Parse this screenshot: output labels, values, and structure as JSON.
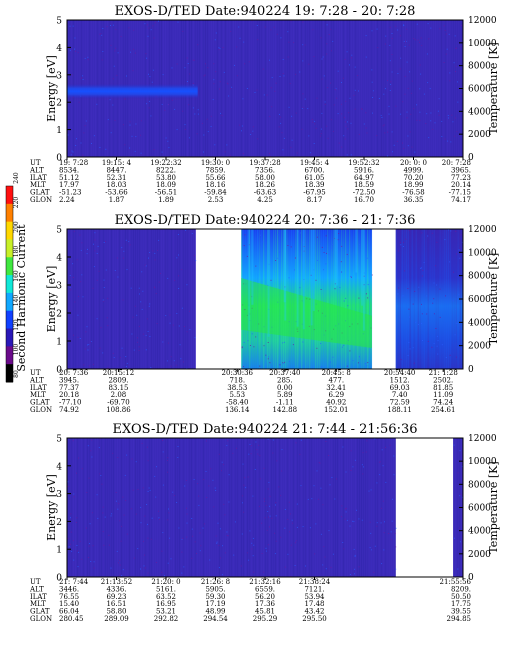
{
  "chart_data": [
    {
      "type": "heatmap",
      "title": "EXOS-D/TED   Date:940224  19: 7:28 - 20: 7:28",
      "ylabel": "Energy [eV]",
      "y2label": "Temperature [K]",
      "ylim": [
        0,
        5
      ],
      "y2lim": [
        0,
        12000
      ],
      "yticks": [
        "0",
        "1",
        "2",
        "3",
        "4",
        "5"
      ],
      "y2ticks": [
        "0",
        "2000",
        "4000",
        "6000",
        "8000",
        "10000",
        "12000"
      ],
      "data_segments": [
        [
          0,
          1
        ]
      ],
      "band": {
        "center": 2.4,
        "width": 0.55,
        "x_end": 0.33
      },
      "ephemeris": {
        "labels": [
          "UT",
          "ALT",
          "ILAT",
          "MLT",
          "GLAT",
          "GLON"
        ],
        "columns": [
          {
            "x": 0.0,
            "values": [
              "19: 7:28",
              "8534.",
              "51.12",
              "17.97",
              "-51.23",
              "2.24"
            ]
          },
          {
            "x": 0.125,
            "values": [
              "19:15: 4",
              "8447.",
              "52.31",
              "18.03",
              "-53.66",
              "1.87"
            ]
          },
          {
            "x": 0.25,
            "values": [
              "19:22:32",
              "8222.",
              "53.80",
              "18.09",
              "-56.51",
              "1.89"
            ]
          },
          {
            "x": 0.375,
            "values": [
              "19:30: 0",
              "7859.",
              "55.66",
              "18.16",
              "-59.84",
              "2.53"
            ]
          },
          {
            "x": 0.5,
            "values": [
              "19:37:28",
              "7356.",
              "58.00",
              "18.26",
              "-63.63",
              "4.25"
            ]
          },
          {
            "x": 0.625,
            "values": [
              "19:45: 4",
              "6700.",
              "61.05",
              "18.39",
              "-67.95",
              "8.17"
            ]
          },
          {
            "x": 0.75,
            "values": [
              "19:52:32",
              "5916.",
              "64.97",
              "18.59",
              "-72.50",
              "16.70"
            ]
          },
          {
            "x": 0.875,
            "values": [
              "20: 0: 0",
              "4999.",
              "70.20",
              "18.99",
              "-76.58",
              "36.35"
            ]
          },
          {
            "x": 1.0,
            "values": [
              "20: 7:28",
              "3965.",
              "77.23",
              "20.14",
              "-77.15",
              "74.17"
            ]
          }
        ]
      }
    },
    {
      "type": "heatmap",
      "title": "EXOS-D/TED   Date:940224  20: 7:36 - 21: 7:36",
      "ylabel": "Energy [eV]",
      "y2label": "Temperature [K]",
      "ylim": [
        0,
        5
      ],
      "y2lim": [
        0,
        12000
      ],
      "yticks": [
        "0",
        "1",
        "2",
        "3",
        "4",
        "5"
      ],
      "y2ticks": [
        "0",
        "2000",
        "4000",
        "6000",
        "8000",
        "10000",
        "12000"
      ],
      "data_segments": [
        [
          0,
          0.325
        ],
        [
          0.44,
          0.77
        ],
        [
          0.83,
          1
        ]
      ],
      "ephemeris": {
        "labels": [
          "UT",
          "ALT",
          "ILAT",
          "MLT",
          "GLAT",
          "GLON"
        ],
        "columns": [
          {
            "x": 0.0,
            "values": [
              "20: 7:36",
              "3945.",
              "77.37",
              "20.18",
              "-77.10",
              "74.92"
            ]
          },
          {
            "x": 0.13,
            "values": [
              "20:15:12",
              "2809.",
              "83.15",
              "2.08",
              "-69.70",
              "108.86"
            ]
          },
          {
            "x": 0.43,
            "values": [
              "20:30:36",
              "718.",
              "38.53",
              "5.53",
              "-58.40",
              "136.14"
            ]
          },
          {
            "x": 0.55,
            "values": [
              "20:37:40",
              "285.",
              "0.00",
              "5.89",
              "-1.11",
              "142.88"
            ]
          },
          {
            "x": 0.68,
            "values": [
              "20:45: 8",
              "477.",
              "32.41",
              "6.29",
              "40.92",
              "152.01"
            ]
          },
          {
            "x": 0.84,
            "values": [
              "20:54:40",
              "1512.",
              "69.03",
              "7.40",
              "72.59",
              "188.11"
            ]
          },
          {
            "x": 0.95,
            "values": [
              "21: 1:28",
              "2502.",
              "81.85",
              "11.09",
              "74.24",
              "254.61"
            ]
          }
        ]
      }
    },
    {
      "type": "heatmap",
      "title": "EXOS-D/TED   Date:940224  21: 7:44 - 21:56:36",
      "ylabel": "Energy [eV]",
      "y2label": "Temperature [K]",
      "ylim": [
        0,
        5
      ],
      "y2lim": [
        0,
        12000
      ],
      "yticks": [
        "0",
        "1",
        "2",
        "3",
        "4",
        "5"
      ],
      "y2ticks": [
        "0",
        "2000",
        "4000",
        "6000",
        "8000",
        "10000",
        "12000"
      ],
      "data_segments": [
        [
          0,
          0.83
        ],
        [
          0.975,
          1
        ]
      ],
      "ephemeris": {
        "labels": [
          "UT",
          "ALT",
          "ILAT",
          "MLT",
          "GLAT",
          "GLON"
        ],
        "columns": [
          {
            "x": 0.0,
            "values": [
              "21: 7:44",
              "3446.",
              "76.55",
              "15.40",
              "66.04",
              "280.45"
            ]
          },
          {
            "x": 0.125,
            "values": [
              "21:13:52",
              "4336.",
              "69.23",
              "16.51",
              "58.80",
              "289.09"
            ]
          },
          {
            "x": 0.25,
            "values": [
              "21:20: 0",
              "5161.",
              "63.52",
              "16.95",
              "53.21",
              "292.82"
            ]
          },
          {
            "x": 0.375,
            "values": [
              "21:26: 8",
              "5905.",
              "59.30",
              "17.19",
              "48.99",
              "294.54"
            ]
          },
          {
            "x": 0.5,
            "values": [
              "21:32:16",
              "6559.",
              "56.20",
              "17.36",
              "45.81",
              "295.29"
            ]
          },
          {
            "x": 0.625,
            "values": [
              "21:38:24",
              "7121.",
              "53.94",
              "17.48",
              "43.42",
              "295.50"
            ]
          },
          {
            "x": 1.0,
            "values": [
              "21:55:56",
              "8209.",
              "50.50",
              "17.75",
              "39.55",
              "294.85"
            ]
          }
        ]
      }
    }
  ],
  "colorbar": {
    "label": "Second Harmonic Current",
    "ticks": [
      "80",
      "100",
      "120",
      "140",
      "160",
      "180",
      "200",
      "220",
      "240"
    ],
    "colors": [
      "#000000",
      "#6a0a8a",
      "#2a18b8",
      "#1040ff",
      "#10a8ff",
      "#10e8d8",
      "#40e840",
      "#c8f028",
      "#ffd800",
      "#ff8000",
      "#ff1010"
    ]
  },
  "colors": {
    "background": "#3a2ab8",
    "band": "#1848ff",
    "bright": "#20d060",
    "blank": "#ffffff"
  }
}
